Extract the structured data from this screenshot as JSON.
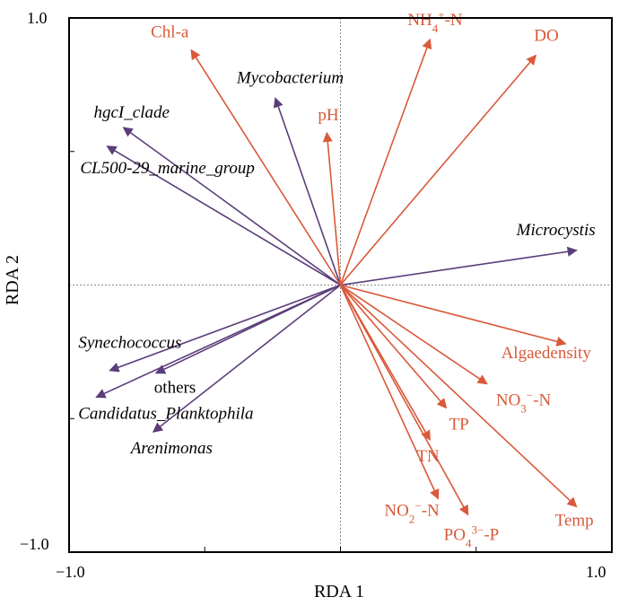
{
  "chart_data": {
    "type": "scatter",
    "subtype": "rda-biplot",
    "title": "",
    "xlabel": "RDA 1",
    "ylabel": "RDA 2",
    "xlim": [
      -1.0,
      1.0
    ],
    "ylim": [
      -1.0,
      1.0
    ],
    "x_tick_labels": [
      "−1.0",
      "1.0"
    ],
    "y_tick_labels": [
      "1.0",
      "−1.0"
    ],
    "reference_lines": {
      "x": 0,
      "y": 0,
      "style": "dotted"
    },
    "colors": {
      "environment": "#d9593a",
      "species": "#5b3d7a",
      "axis": "#000000"
    },
    "environment_vectors": [
      {
        "label": "Chl-a",
        "x": -0.55,
        "y": 0.88
      },
      {
        "label": "NH4+-N",
        "x": 0.33,
        "y": 0.92
      },
      {
        "label": "DO",
        "x": 0.72,
        "y": 0.86
      },
      {
        "label": "pH",
        "x": -0.05,
        "y": 0.57
      },
      {
        "label": "Algaedensity",
        "x": 0.83,
        "y": -0.22
      },
      {
        "label": "NO3−-N",
        "x": 0.54,
        "y": -0.37
      },
      {
        "label": "TP",
        "x": 0.39,
        "y": -0.46
      },
      {
        "label": "TN",
        "x": 0.33,
        "y": -0.58
      },
      {
        "label": "NO2−-N",
        "x": 0.36,
        "y": -0.8
      },
      {
        "label": "PO43−-P",
        "x": 0.47,
        "y": -0.86
      },
      {
        "label": "Temp",
        "x": 0.87,
        "y": -0.83
      }
    ],
    "species_vectors": [
      {
        "label": "Mycobacterium",
        "x": -0.24,
        "y": 0.7
      },
      {
        "label": "hgcI_clade",
        "x": -0.8,
        "y": 0.59
      },
      {
        "label": "CL500-29_marine_group",
        "x": -0.86,
        "y": 0.52
      },
      {
        "label": "Microcystis",
        "x": 0.87,
        "y": 0.13
      },
      {
        "label": "Synechococcus",
        "x": -0.85,
        "y": -0.32
      },
      {
        "label": "others",
        "x": -0.68,
        "y": -0.33
      },
      {
        "label": "Candidatus_Planktophila",
        "x": -0.9,
        "y": -0.42
      },
      {
        "label": "Arenimonas",
        "x": -0.69,
        "y": -0.55
      }
    ]
  }
}
